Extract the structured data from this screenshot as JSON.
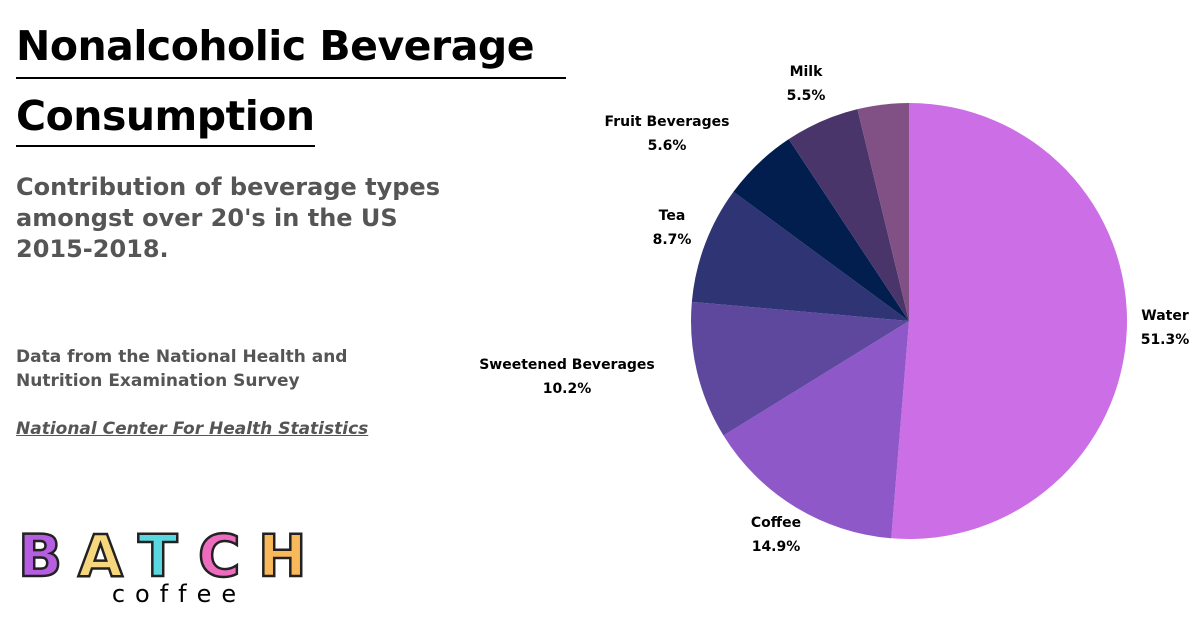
{
  "header": {
    "title_line1": "Nonalcoholic Beverage",
    "title_line2": "Consumption",
    "subtitle": "Contribution of beverage types amongst over 20's in the US 2015-2018."
  },
  "source": {
    "text": "Data from the National Health and Nutrition Examination Survey",
    "link": "National Center For Health Statistics"
  },
  "logo": {
    "word": "BATCH",
    "sub": "coffee",
    "letter_colors": [
      "#b65ee0",
      "#f7d77e",
      "#5ad8e0",
      "#ee6cc0",
      "#f9b85a"
    ]
  },
  "chart_data": {
    "type": "pie",
    "title": "Nonalcoholic Beverage Consumption",
    "start": "top",
    "direction": "clockwise",
    "slices": [
      {
        "name": "Water",
        "value": 51.3,
        "label": "51.3%",
        "color": "#cc6ee6"
      },
      {
        "name": "Coffee",
        "value": 14.9,
        "label": "14.9%",
        "color": "#8e58c8"
      },
      {
        "name": "Sweetened Beverages",
        "value": 10.2,
        "label": "10.2%",
        "color": "#5e489e"
      },
      {
        "name": "Tea",
        "value": 8.7,
        "label": "8.7%",
        "color": "#2e3474"
      },
      {
        "name": "Fruit Beverages",
        "value": 5.6,
        "label": "5.6%",
        "color": "#021e4e"
      },
      {
        "name": "Milk",
        "value": 5.5,
        "label": "5.5%",
        "color": "#4a356a"
      },
      {
        "name": "",
        "value": 3.8,
        "label": "",
        "color": "#815084"
      }
    ]
  }
}
